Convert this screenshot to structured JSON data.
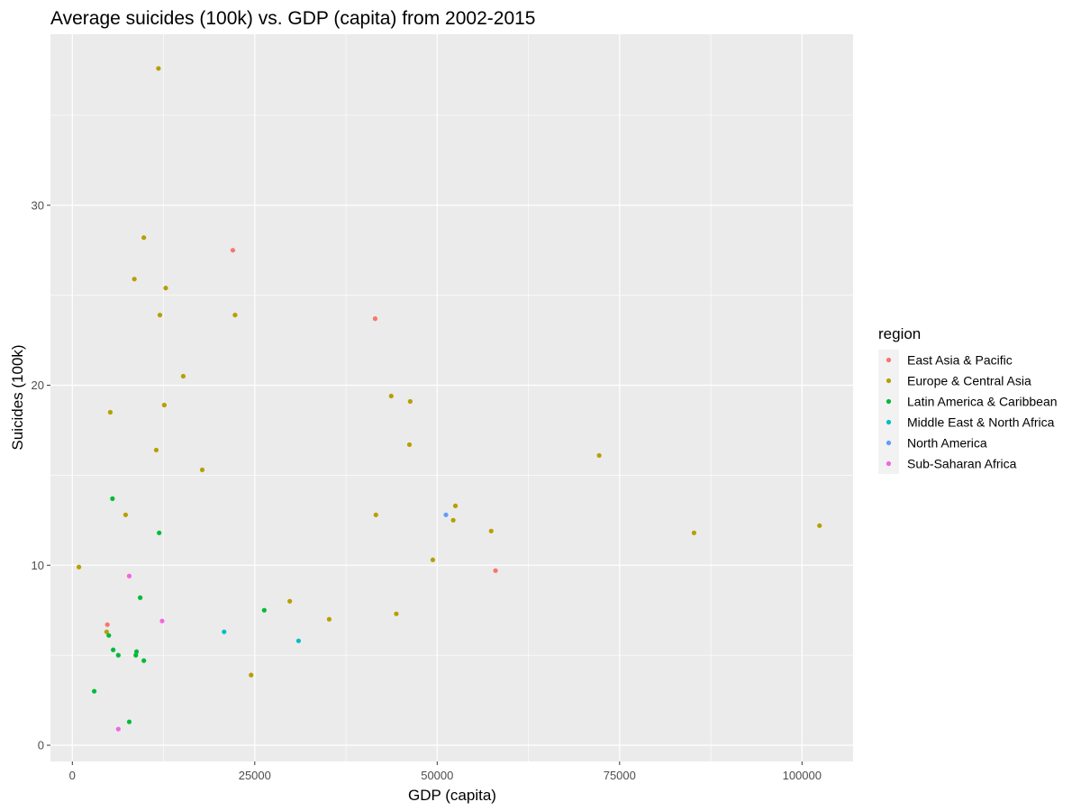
{
  "chart_data": {
    "type": "scatter",
    "title": "Average suicides (100k) vs. GDP (capita) from 2002-2015",
    "xlabel": "GDP (capita)",
    "ylabel": "Suicides (100k)",
    "xlim": [
      -3000,
      107000
    ],
    "ylim": [
      -0.9,
      39.5
    ],
    "xticks": [
      0,
      25000,
      50000,
      75000,
      100000
    ],
    "xtick_labels": [
      "0",
      "25000",
      "50000",
      "75000",
      "100000"
    ],
    "yticks": [
      0,
      10,
      20,
      30
    ],
    "ytick_labels": [
      "0",
      "10",
      "20",
      "30"
    ],
    "grid": true,
    "background": "#EBEBEB",
    "legend": {
      "title": "region",
      "position": "right"
    },
    "series": [
      {
        "name": "East Asia & Pacific",
        "color": "#F8766D",
        "points": [
          [
            22000,
            27.5
          ],
          [
            41500,
            23.7
          ],
          [
            58000,
            9.7
          ],
          [
            4800,
            6.7
          ]
        ]
      },
      {
        "name": "Europe & Central Asia",
        "color": "#B79F00",
        "points": [
          [
            11800,
            37.6
          ],
          [
            9800,
            28.2
          ],
          [
            8500,
            25.9
          ],
          [
            12800,
            25.4
          ],
          [
            12000,
            23.9
          ],
          [
            22300,
            23.9
          ],
          [
            15200,
            20.5
          ],
          [
            5200,
            18.5
          ],
          [
            12600,
            18.9
          ],
          [
            11500,
            16.4
          ],
          [
            17800,
            15.3
          ],
          [
            7300,
            12.8
          ],
          [
            900,
            9.9
          ],
          [
            43700,
            19.4
          ],
          [
            46300,
            19.1
          ],
          [
            46200,
            16.7
          ],
          [
            41600,
            12.8
          ],
          [
            52500,
            13.3
          ],
          [
            52200,
            12.5
          ],
          [
            57400,
            11.9
          ],
          [
            49400,
            10.3
          ],
          [
            72200,
            16.1
          ],
          [
            85200,
            11.8
          ],
          [
            102400,
            12.2
          ],
          [
            29800,
            8.0
          ],
          [
            35200,
            7.0
          ],
          [
            44400,
            7.3
          ],
          [
            24500,
            3.9
          ],
          [
            4700,
            6.3
          ]
        ]
      },
      {
        "name": "Latin America & Caribbean",
        "color": "#00BA38",
        "points": [
          [
            5500,
            13.7
          ],
          [
            11900,
            11.8
          ],
          [
            9300,
            8.2
          ],
          [
            26300,
            7.5
          ],
          [
            5000,
            6.1
          ],
          [
            5600,
            5.3
          ],
          [
            6300,
            5.0
          ],
          [
            8700,
            5.0
          ],
          [
            8800,
            5.2
          ],
          [
            9800,
            4.7
          ],
          [
            3000,
            3.0
          ],
          [
            7800,
            1.3
          ]
        ]
      },
      {
        "name": "Middle East & North Africa",
        "color": "#00BFC4",
        "points": [
          [
            20800,
            6.3
          ],
          [
            31000,
            5.8
          ]
        ]
      },
      {
        "name": "North America",
        "color": "#619CFF",
        "points": [
          [
            51200,
            12.8
          ]
        ]
      },
      {
        "name": "Sub-Saharan Africa",
        "color": "#F564E3",
        "points": [
          [
            7800,
            9.4
          ],
          [
            12300,
            6.9
          ],
          [
            6300,
            0.9
          ]
        ]
      }
    ]
  }
}
